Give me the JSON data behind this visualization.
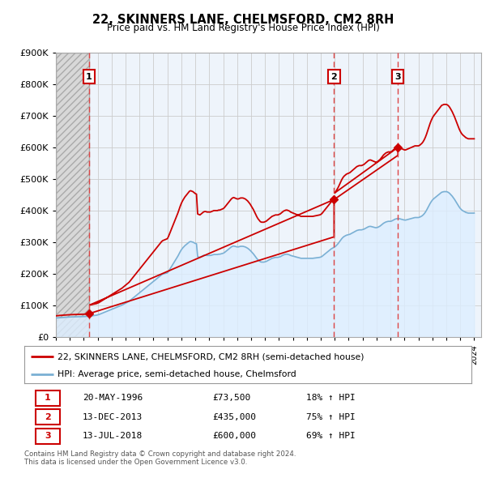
{
  "title": "22, SKINNERS LANE, CHELMSFORD, CM2 8RH",
  "subtitle": "Price paid vs. HM Land Registry's House Price Index (HPI)",
  "ylim": [
    0,
    900000
  ],
  "yticks": [
    0,
    100000,
    200000,
    300000,
    400000,
    500000,
    600000,
    700000,
    800000,
    900000
  ],
  "xlim_start": 1994.0,
  "xlim_end": 2024.5,
  "transactions": [
    {
      "year": 1996.38,
      "price": 73500,
      "label": "1",
      "date": "20-MAY-1996",
      "pct": "18%"
    },
    {
      "year": 2013.95,
      "price": 435000,
      "label": "2",
      "date": "13-DEC-2013",
      "pct": "75%"
    },
    {
      "year": 2018.53,
      "price": 600000,
      "label": "3",
      "date": "13-JUL-2018",
      "pct": "69%"
    }
  ],
  "red_line_color": "#cc0000",
  "blue_line_color": "#7ab0d4",
  "hpi_fill_color": "#ddeeff",
  "transaction_dashed_color": "#dd4444",
  "marker_box_color": "#cc0000",
  "grid_color": "#cccccc",
  "background_color": "#ffffff",
  "legend_label_red": "22, SKINNERS LANE, CHELMSFORD, CM2 8RH (semi-detached house)",
  "legend_label_blue": "HPI: Average price, semi-detached house, Chelmsford",
  "footer_line1": "Contains HM Land Registry data © Crown copyright and database right 2024.",
  "footer_line2": "This data is licensed under the Open Government Licence v3.0.",
  "hpi_data_x": [
    1994.0,
    1994.083,
    1994.167,
    1994.25,
    1994.333,
    1994.417,
    1994.5,
    1994.583,
    1994.667,
    1994.75,
    1994.833,
    1994.917,
    1995.0,
    1995.083,
    1995.167,
    1995.25,
    1995.333,
    1995.417,
    1995.5,
    1995.583,
    1995.667,
    1995.75,
    1995.833,
    1995.917,
    1996.0,
    1996.083,
    1996.167,
    1996.25,
    1996.333,
    1996.417,
    1996.5,
    1996.583,
    1996.667,
    1996.75,
    1996.833,
    1996.917,
    1997.0,
    1997.083,
    1997.167,
    1997.25,
    1997.333,
    1997.417,
    1997.5,
    1997.583,
    1997.667,
    1997.75,
    1997.833,
    1997.917,
    1998.0,
    1998.083,
    1998.167,
    1998.25,
    1998.333,
    1998.417,
    1998.5,
    1998.583,
    1998.667,
    1998.75,
    1998.833,
    1998.917,
    1999.0,
    1999.083,
    1999.167,
    1999.25,
    1999.333,
    1999.417,
    1999.5,
    1999.583,
    1999.667,
    1999.75,
    1999.833,
    1999.917,
    2000.0,
    2000.083,
    2000.167,
    2000.25,
    2000.333,
    2000.417,
    2000.5,
    2000.583,
    2000.667,
    2000.75,
    2000.833,
    2000.917,
    2001.0,
    2001.083,
    2001.167,
    2001.25,
    2001.333,
    2001.417,
    2001.5,
    2001.583,
    2001.667,
    2001.75,
    2001.833,
    2001.917,
    2002.0,
    2002.083,
    2002.167,
    2002.25,
    2002.333,
    2002.417,
    2002.5,
    2002.583,
    2002.667,
    2002.75,
    2002.833,
    2002.917,
    2003.0,
    2003.083,
    2003.167,
    2003.25,
    2003.333,
    2003.417,
    2003.5,
    2003.583,
    2003.667,
    2003.75,
    2003.833,
    2003.917,
    2004.0,
    2004.083,
    2004.167,
    2004.25,
    2004.333,
    2004.417,
    2004.5,
    2004.583,
    2004.667,
    2004.75,
    2004.833,
    2004.917,
    2005.0,
    2005.083,
    2005.167,
    2005.25,
    2005.333,
    2005.417,
    2005.5,
    2005.583,
    2005.667,
    2005.75,
    2005.833,
    2005.917,
    2006.0,
    2006.083,
    2006.167,
    2006.25,
    2006.333,
    2006.417,
    2006.5,
    2006.583,
    2006.667,
    2006.75,
    2006.833,
    2006.917,
    2007.0,
    2007.083,
    2007.167,
    2007.25,
    2007.333,
    2007.417,
    2007.5,
    2007.583,
    2007.667,
    2007.75,
    2007.833,
    2007.917,
    2008.0,
    2008.083,
    2008.167,
    2008.25,
    2008.333,
    2008.417,
    2008.5,
    2008.583,
    2008.667,
    2008.75,
    2008.833,
    2008.917,
    2009.0,
    2009.083,
    2009.167,
    2009.25,
    2009.333,
    2009.417,
    2009.5,
    2009.583,
    2009.667,
    2009.75,
    2009.833,
    2009.917,
    2010.0,
    2010.083,
    2010.167,
    2010.25,
    2010.333,
    2010.417,
    2010.5,
    2010.583,
    2010.667,
    2010.75,
    2010.833,
    2010.917,
    2011.0,
    2011.083,
    2011.167,
    2011.25,
    2011.333,
    2011.417,
    2011.5,
    2011.583,
    2011.667,
    2011.75,
    2011.833,
    2011.917,
    2012.0,
    2012.083,
    2012.167,
    2012.25,
    2012.333,
    2012.417,
    2012.5,
    2012.583,
    2012.667,
    2012.75,
    2012.833,
    2012.917,
    2013.0,
    2013.083,
    2013.167,
    2013.25,
    2013.333,
    2013.417,
    2013.5,
    2013.583,
    2013.667,
    2013.75,
    2013.833,
    2013.917,
    2014.0,
    2014.083,
    2014.167,
    2014.25,
    2014.333,
    2014.417,
    2014.5,
    2014.583,
    2014.667,
    2014.75,
    2014.833,
    2014.917,
    2015.0,
    2015.083,
    2015.167,
    2015.25,
    2015.333,
    2015.417,
    2015.5,
    2015.583,
    2015.667,
    2015.75,
    2015.833,
    2015.917,
    2016.0,
    2016.083,
    2016.167,
    2016.25,
    2016.333,
    2016.417,
    2016.5,
    2016.583,
    2016.667,
    2016.75,
    2016.833,
    2016.917,
    2017.0,
    2017.083,
    2017.167,
    2017.25,
    2017.333,
    2017.417,
    2017.5,
    2017.583,
    2017.667,
    2017.75,
    2017.833,
    2017.917,
    2018.0,
    2018.083,
    2018.167,
    2018.25,
    2018.333,
    2018.417,
    2018.5,
    2018.583,
    2018.667,
    2018.75,
    2018.833,
    2018.917,
    2019.0,
    2019.083,
    2019.167,
    2019.25,
    2019.333,
    2019.417,
    2019.5,
    2019.583,
    2019.667,
    2019.75,
    2019.833,
    2019.917,
    2020.0,
    2020.083,
    2020.167,
    2020.25,
    2020.333,
    2020.417,
    2020.5,
    2020.583,
    2020.667,
    2020.75,
    2020.833,
    2020.917,
    2021.0,
    2021.083,
    2021.167,
    2021.25,
    2021.333,
    2021.417,
    2021.5,
    2021.583,
    2021.667,
    2021.75,
    2021.833,
    2021.917,
    2022.0,
    2022.083,
    2022.167,
    2022.25,
    2022.333,
    2022.417,
    2022.5,
    2022.583,
    2022.667,
    2022.75,
    2022.833,
    2022.917,
    2023.0,
    2023.083,
    2023.167,
    2023.25,
    2023.333,
    2023.417,
    2023.5,
    2023.583,
    2023.667,
    2023.75,
    2023.833,
    2023.917,
    2024.0
  ],
  "hpi_data_y": [
    60000,
    60200,
    60500,
    61000,
    61200,
    61500,
    61800,
    62000,
    62200,
    62500,
    62800,
    63000,
    63200,
    63400,
    63500,
    63600,
    63700,
    63800,
    63900,
    64000,
    64100,
    64200,
    64300,
    64400,
    64500,
    64700,
    65000,
    65300,
    65600,
    66000,
    66500,
    67000,
    67500,
    68000,
    68500,
    69000,
    70000,
    71000,
    72500,
    74000,
    75500,
    77000,
    78500,
    80000,
    81500,
    83000,
    84500,
    86000,
    87500,
    89000,
    90500,
    92000,
    93500,
    95000,
    96500,
    98000,
    99500,
    101000,
    103000,
    105000,
    107000,
    109000,
    111000,
    113000,
    116000,
    119000,
    122000,
    125000,
    128000,
    131000,
    134000,
    137000,
    140000,
    143000,
    146000,
    149000,
    152000,
    155000,
    158000,
    161000,
    164000,
    167000,
    170000,
    173000,
    176000,
    179000,
    182000,
    185000,
    188000,
    191000,
    194000,
    197000,
    199000,
    200000,
    201000,
    202000,
    203000,
    208000,
    214000,
    220000,
    226000,
    232000,
    238000,
    244000,
    250000,
    256000,
    263000,
    270000,
    276000,
    281000,
    285000,
    289000,
    292000,
    295000,
    298000,
    301000,
    302000,
    301000,
    300000,
    298000,
    296000,
    295000,
    254000,
    253000,
    252000,
    254000,
    256000,
    258000,
    259000,
    259000,
    258000,
    258000,
    258000,
    258000,
    259000,
    260000,
    261000,
    261000,
    261000,
    261000,
    262000,
    262000,
    263000,
    264000,
    265000,
    267000,
    270000,
    273000,
    276000,
    279000,
    282000,
    285000,
    287000,
    288000,
    287000,
    286000,
    285000,
    285000,
    286000,
    287000,
    287000,
    287000,
    286000,
    285000,
    283000,
    281000,
    278000,
    275000,
    271000,
    267000,
    263000,
    258000,
    253000,
    248000,
    244000,
    241000,
    238000,
    237000,
    237000,
    237000,
    238000,
    239000,
    241000,
    243000,
    245000,
    247000,
    249000,
    250000,
    251000,
    252000,
    252000,
    252000,
    253000,
    254000,
    256000,
    258000,
    260000,
    261000,
    262000,
    262000,
    261000,
    260000,
    258000,
    257000,
    256000,
    255000,
    254000,
    253000,
    252000,
    251000,
    250000,
    249000,
    249000,
    249000,
    249000,
    249000,
    249000,
    249000,
    249000,
    249000,
    249000,
    249000,
    249500,
    250000,
    250500,
    251000,
    251500,
    252000,
    253000,
    255000,
    258000,
    261000,
    264000,
    267000,
    270000,
    273000,
    276000,
    279000,
    281000,
    283000,
    285000,
    288000,
    292000,
    296000,
    301000,
    306000,
    311000,
    315000,
    318000,
    320000,
    322000,
    323000,
    324000,
    325000,
    327000,
    329000,
    331000,
    333000,
    335000,
    337000,
    338000,
    339000,
    339000,
    339000,
    340000,
    341000,
    343000,
    345000,
    347000,
    349000,
    350000,
    350000,
    349000,
    348000,
    347000,
    346000,
    346000,
    347000,
    349000,
    351000,
    354000,
    357000,
    360000,
    362000,
    364000,
    365000,
    366000,
    366000,
    366000,
    367000,
    369000,
    371000,
    373000,
    374000,
    375000,
    375000,
    374000,
    373000,
    372000,
    371000,
    370000,
    370000,
    371000,
    372000,
    373000,
    374000,
    375000,
    376000,
    377000,
    378000,
    378000,
    378000,
    378000,
    379000,
    381000,
    383000,
    386000,
    390000,
    395000,
    401000,
    408000,
    415000,
    422000,
    428000,
    433000,
    437000,
    440000,
    443000,
    446000,
    449000,
    452000,
    455000,
    458000,
    459000,
    460000,
    460000,
    460000,
    459000,
    457000,
    454000,
    450000,
    446000,
    441000,
    436000,
    430000,
    424000,
    418000,
    412000,
    407000,
    403000,
    400000,
    398000,
    396000,
    394000,
    393000,
    392000,
    392000,
    392000,
    392000,
    392000,
    392000
  ]
}
